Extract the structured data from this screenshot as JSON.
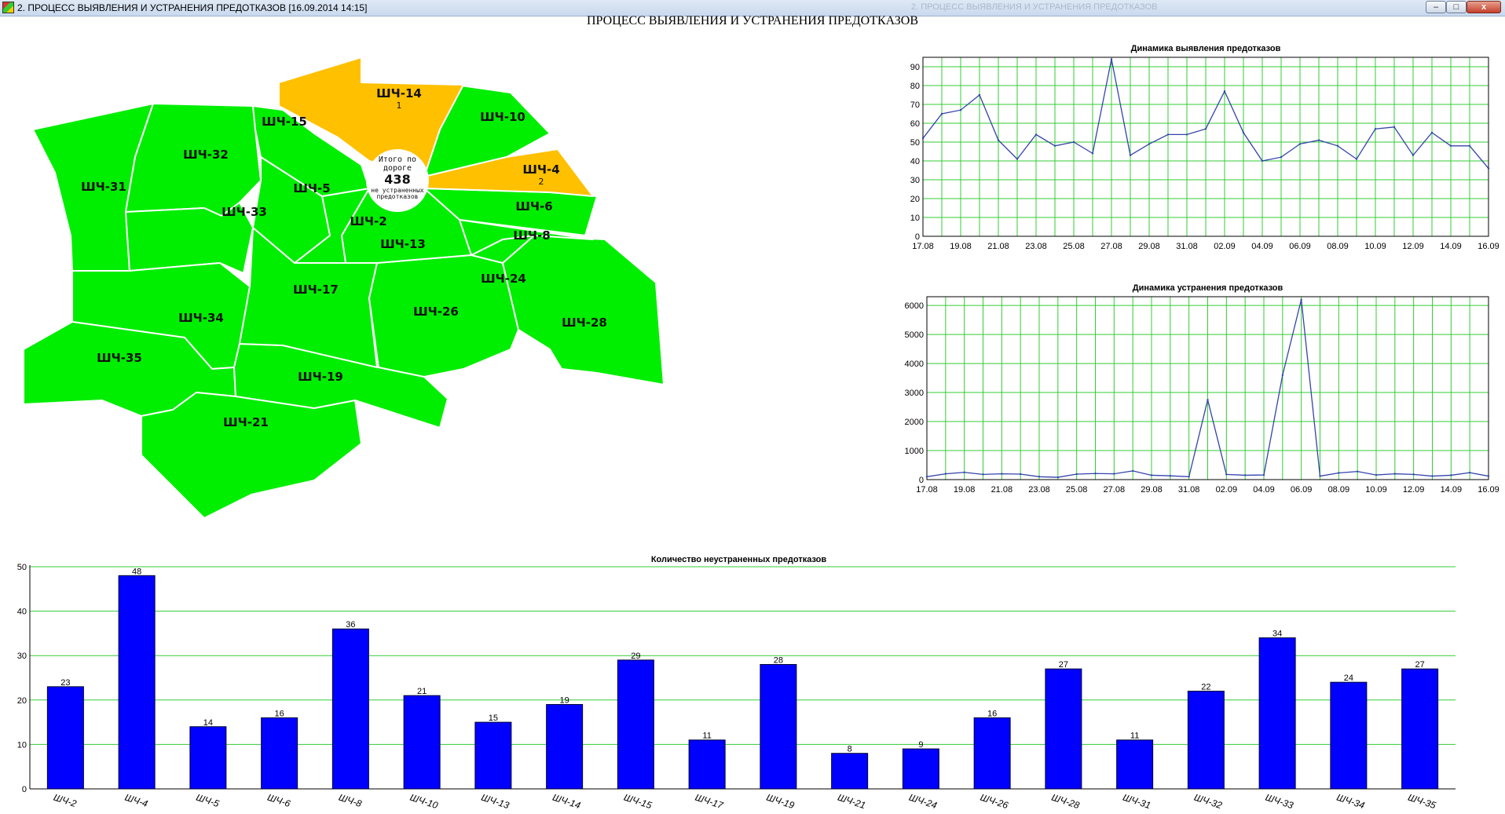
{
  "window": {
    "title": "2. ПРОЦЕСС ВЫЯВЛЕНИЯ И УСТРАНЕНИЯ ПРЕДОТКАЗОВ [16.09.2014 14:15]",
    "ghost_tab": "2. ПРОЦЕСС ВЫЯВЛЕНИЯ И УСТРАНЕНИЯ ПРЕДОТКАЗОВ",
    "btn_minimize": "–",
    "btn_maximize": "□",
    "btn_close": "x"
  },
  "page_title": "ПРОЦЕСС ВЫЯВЛЕНИЯ И УСТРАНЕНИЯ ПРЕДОТКАЗОВ",
  "map": {
    "colors": {
      "ok": "#00ee00",
      "warning": "#ffc000",
      "border": "#ffffff"
    },
    "total": {
      "line1": "Итого по",
      "line2": "дороге",
      "value": "438",
      "line3": "не устраненных",
      "line4": "предотказов"
    },
    "regions": [
      {
        "id": "sch-31",
        "label": "ШЧ-31",
        "status": "ok"
      },
      {
        "id": "sch-32",
        "label": "ШЧ-32",
        "status": "ok"
      },
      {
        "id": "sch-33",
        "label": "ШЧ-33",
        "status": "ok"
      },
      {
        "id": "sch-34",
        "label": "ШЧ-34",
        "status": "ok"
      },
      {
        "id": "sch-35",
        "label": "ШЧ-35",
        "status": "ok"
      },
      {
        "id": "sch-21",
        "label": "ШЧ-21",
        "status": "ok"
      },
      {
        "id": "sch-19",
        "label": "ШЧ-19",
        "status": "ok"
      },
      {
        "id": "sch-17",
        "label": "ШЧ-17",
        "status": "ok"
      },
      {
        "id": "sch-26",
        "label": "ШЧ-26",
        "status": "ok"
      },
      {
        "id": "sch-28",
        "label": "ШЧ-28",
        "status": "ok"
      },
      {
        "id": "sch-24",
        "label": "ШЧ-24",
        "status": "ok"
      },
      {
        "id": "sch-8",
        "label": "ШЧ-8",
        "status": "ok"
      },
      {
        "id": "sch-6",
        "label": "ШЧ-6",
        "status": "ok"
      },
      {
        "id": "sch-13",
        "label": "ШЧ-13",
        "status": "ok"
      },
      {
        "id": "sch-2",
        "label": "ШЧ-2",
        "status": "ok"
      },
      {
        "id": "sch-5",
        "label": "ШЧ-5",
        "status": "ok"
      },
      {
        "id": "sch-15",
        "label": "ШЧ-15",
        "status": "ok"
      },
      {
        "id": "sch-10",
        "label": "ШЧ-10",
        "status": "ok"
      },
      {
        "id": "sch-14",
        "label": "ШЧ-14",
        "status": "warning",
        "count": "1"
      },
      {
        "id": "sch-4",
        "label": "ШЧ-4",
        "status": "warning",
        "count": "2"
      }
    ]
  },
  "chart_data": [
    {
      "type": "line",
      "title": "Динамика выявления предотказов",
      "x": [
        "17.08",
        "18.08",
        "19.08",
        "20.08",
        "21.08",
        "22.08",
        "23.08",
        "24.08",
        "25.08",
        "26.08",
        "27.08",
        "28.08",
        "29.08",
        "30.08",
        "31.08",
        "01.09",
        "02.09",
        "03.09",
        "04.09",
        "05.09",
        "06.09",
        "07.09",
        "08.09",
        "09.09",
        "10.09",
        "11.09",
        "12.09",
        "13.09",
        "14.09",
        "15.09",
        "16.09"
      ],
      "x_tick_labels": [
        "17.08",
        "19.08",
        "21.08",
        "23.08",
        "25.08",
        "27.08",
        "29.08",
        "31.08",
        "02.09",
        "04.09",
        "06.09",
        "08.09",
        "10.09",
        "12.09",
        "14.09",
        "16.09"
      ],
      "series": [
        {
          "values": [
            52,
            65,
            67,
            75,
            51,
            41,
            54,
            48,
            50,
            44,
            94,
            43,
            49,
            54,
            54,
            57,
            77,
            55,
            40,
            42,
            49,
            51,
            48,
            41,
            57,
            58,
            43,
            55,
            48,
            48,
            36
          ],
          "color": "#3344aa"
        }
      ],
      "ylim": [
        0,
        95
      ],
      "y_ticks": [
        0,
        10,
        20,
        30,
        40,
        50,
        60,
        70,
        80,
        90
      ],
      "grid": true,
      "grid_color": "#33cc33"
    },
    {
      "type": "line",
      "title": "Динамика устранения предотказов",
      "x": [
        "17.08",
        "18.08",
        "19.08",
        "20.08",
        "21.08",
        "22.08",
        "23.08",
        "24.08",
        "25.08",
        "26.08",
        "27.08",
        "28.08",
        "29.08",
        "30.08",
        "31.08",
        "01.09",
        "02.09",
        "03.09",
        "04.09",
        "05.09",
        "06.09",
        "07.09",
        "08.09",
        "09.09",
        "10.09",
        "11.09",
        "12.09",
        "13.09",
        "14.09",
        "15.09",
        "16.09"
      ],
      "x_tick_labels": [
        "17.08",
        "19.08",
        "21.08",
        "23.08",
        "25.08",
        "27.08",
        "29.08",
        "31.08",
        "02.09",
        "04.09",
        "06.09",
        "08.09",
        "10.09",
        "12.09",
        "14.09",
        "16.09"
      ],
      "series": [
        {
          "values": [
            100,
            200,
            250,
            180,
            200,
            190,
            100,
            80,
            190,
            210,
            200,
            300,
            150,
            130,
            100,
            2750,
            180,
            150,
            160,
            3600,
            6200,
            120,
            230,
            280,
            160,
            200,
            180,
            120,
            150,
            240,
            120
          ],
          "color": "#3344aa"
        }
      ],
      "ylim": [
        0,
        6300
      ],
      "y_ticks": [
        0,
        1000,
        2000,
        3000,
        4000,
        5000,
        6000
      ],
      "grid": true,
      "grid_color": "#33cc33"
    },
    {
      "type": "bar",
      "title": "Количество неустраненных предотказов",
      "categories": [
        "ШЧ-2",
        "ШЧ-4",
        "ШЧ-5",
        "ШЧ-6",
        "ШЧ-8",
        "ШЧ-10",
        "ШЧ-13",
        "ШЧ-14",
        "ШЧ-15",
        "ШЧ-17",
        "ШЧ-19",
        "ШЧ-21",
        "ШЧ-24",
        "ШЧ-26",
        "ШЧ-28",
        "ШЧ-31",
        "ШЧ-32",
        "ШЧ-33",
        "ШЧ-34",
        "ШЧ-35"
      ],
      "values": [
        23,
        48,
        14,
        16,
        36,
        21,
        15,
        19,
        29,
        11,
        28,
        8,
        9,
        16,
        27,
        11,
        22,
        34,
        24,
        27
      ],
      "ylim": [
        0,
        50
      ],
      "y_ticks": [
        0,
        10,
        20,
        30,
        40,
        50
      ],
      "bar_color": "#0000ff",
      "grid": true,
      "grid_color": "#33cc33"
    }
  ]
}
